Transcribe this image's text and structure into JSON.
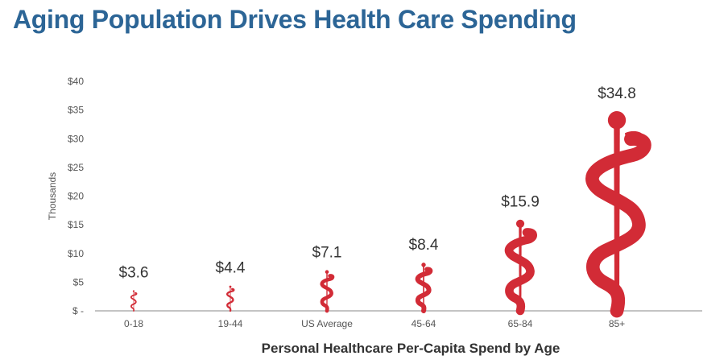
{
  "title": "Aging Population Drives Health Care Spending",
  "colors": {
    "title": "#2c6596",
    "mark": "#d22b36",
    "axis": "#888888"
  },
  "chart_data": {
    "type": "bar",
    "mark_style": "caduceus-icon",
    "categories": [
      "0-18",
      "19-44",
      "US Average",
      "45-64",
      "65-84",
      "85+"
    ],
    "values": [
      3.6,
      4.4,
      7.1,
      8.4,
      15.9,
      34.8
    ],
    "data_labels": [
      "$3.6",
      "$4.4",
      "$7.1",
      "$8.4",
      "$15.9",
      "$34.8"
    ],
    "y_ticks": [
      {
        "value": 0,
        "label": "$ -"
      },
      {
        "value": 5,
        "label": "$5"
      },
      {
        "value": 10,
        "label": "$10"
      },
      {
        "value": 15,
        "label": "$15"
      },
      {
        "value": 20,
        "label": "$20"
      },
      {
        "value": 25,
        "label": "$25"
      },
      {
        "value": 30,
        "label": "$30"
      },
      {
        "value": 35,
        "label": "$35"
      },
      {
        "value": 40,
        "label": "$40"
      }
    ],
    "ylim": [
      0,
      40
    ],
    "ylabel": "Thousands",
    "xlabel": "Personal Healthcare Per-Capita Spend by Age",
    "grid": false
  }
}
